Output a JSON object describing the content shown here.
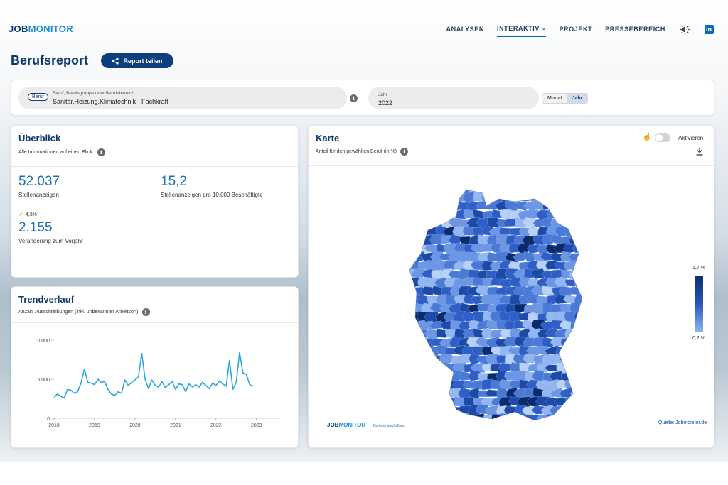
{
  "header": {
    "logo_part1": "JOB",
    "logo_part2": "MONITOR",
    "nav": [
      "ANALYSEN",
      "INTERAKTIV",
      "PROJEKT",
      "PRESSEBEREICH"
    ],
    "active_nav": "INTERAKTIV",
    "icons": [
      "theme-toggle-icon",
      "linkedin-icon"
    ]
  },
  "page": {
    "title": "Berufsreport",
    "share_label": "Report teilen"
  },
  "filters": {
    "badge": "Beruf",
    "occupation_label": "Beruf, Berufsgruppe oder Berufsbereich",
    "occupation_value": "Sanitär,Heizung,Klimatechnik - Fachkraft",
    "year_label": "Jahr",
    "year_value": "2022",
    "segment": [
      "Monat",
      "Jahr"
    ],
    "segment_selected": "Jahr"
  },
  "overview": {
    "title": "Überblick",
    "subtitle": "Alle Informationen auf einen Blick.",
    "metric1_value": "52.037",
    "metric1_label": "Stellenanzeigen",
    "metric2_value": "15,2",
    "metric2_label": "Stellenanzeigen pro 10.000 Beschäftigte",
    "change_pct": "4,3%",
    "metric3_value": "2.155",
    "metric3_label": "Veränderung zum Vorjahr"
  },
  "trend": {
    "title": "Trendverlauf",
    "subtitle": "Anzahl Ausschreibungen (inkl. unbekannter Arbeitsort)"
  },
  "chart_data": {
    "type": "line",
    "title": "",
    "xlabel": "",
    "ylabel": "",
    "ylim": [
      0,
      10000
    ],
    "y_ticks": [
      "0",
      "5.000",
      "10.000"
    ],
    "x_ticks": [
      "2018",
      "2019",
      "2020",
      "2021",
      "2022",
      "2023"
    ],
    "x_start_year": 2018,
    "series": [
      {
        "values": [
          2700,
          3100,
          2800,
          2600,
          3700,
          3600,
          3200,
          3400,
          4500,
          6300,
          4600,
          4500,
          4300,
          5000,
          4600,
          4700,
          3700,
          3100,
          2900,
          3400,
          3200,
          4900,
          4200,
          4600,
          4900,
          5300,
          8300,
          5000,
          3800,
          4900,
          4200,
          4000,
          4700,
          3900,
          4300,
          4700,
          3700,
          4400,
          4300,
          3400,
          4400,
          4000,
          4300,
          4000,
          4600,
          4200,
          3800,
          4500,
          4200,
          4800,
          4400,
          4100,
          7400,
          3700,
          4600,
          8400,
          5800,
          5600,
          4300,
          4100
        ],
        "color": "#29a6df"
      }
    ]
  },
  "map": {
    "title": "Karte",
    "subtitle": "Anteil für den gewählten Beruf (in %)",
    "toggle_label": "Aktivieren",
    "legend_max": "1,7 %",
    "legend_min": "0,2 %",
    "footer_logo1": "JOB",
    "footer_logo2": "MONITOR",
    "footer_partner": "BertelsmannStiftung",
    "source": "Quelle: Jobmonitor.de",
    "colors": [
      "#0a2b6e",
      "#1d4aa6",
      "#2f5fc6",
      "#4a7ad6",
      "#6d97e4",
      "#93b7f0",
      "#b9d1f7"
    ]
  }
}
